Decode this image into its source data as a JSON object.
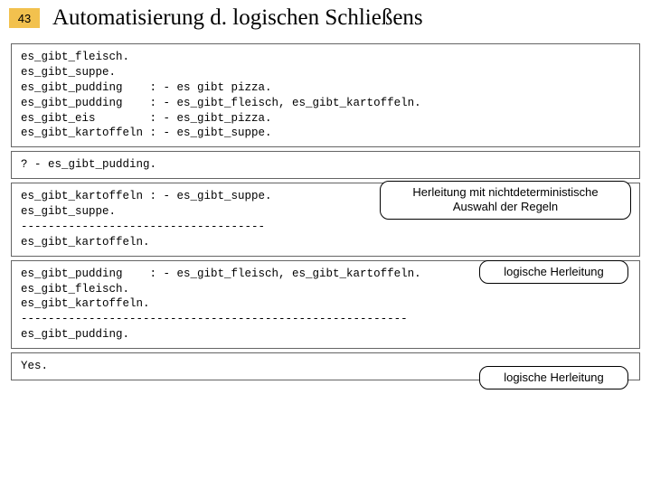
{
  "page_number": "43",
  "title": "Automatisierung d. logischen Schließens",
  "colors": {
    "pagenum_bg": "#f2c14e",
    "box_border": "#646464",
    "text": "#000000",
    "bg": "#ffffff"
  },
  "box1": "es_gibt_fleisch.\nes_gibt_suppe.\nes_gibt_pudding    : - es gibt pizza.\nes_gibt_pudding    : - es_gibt_fleisch, es_gibt_kartoffeln.\nes_gibt_eis        : - es_gibt_pizza.\nes_gibt_kartoffeln : - es_gibt_suppe.",
  "box2": "? - es_gibt_pudding.",
  "box3": "es_gibt_kartoffeln : - es_gibt_suppe.\nes_gibt_suppe.\n------------------------------------\nes_gibt_kartoffeln.",
  "box4": "es_gibt_pudding    : - es_gibt_fleisch, es_gibt_kartoffeln.\nes_gibt_fleisch.\nes_gibt_kartoffeln.\n---------------------------------------------------------\nes_gibt_pudding.",
  "box5": "Yes.",
  "callout_main": "Herleitung mit nichtdeterministische Auswahl der Regeln",
  "callout_her": "logische Herleitung"
}
